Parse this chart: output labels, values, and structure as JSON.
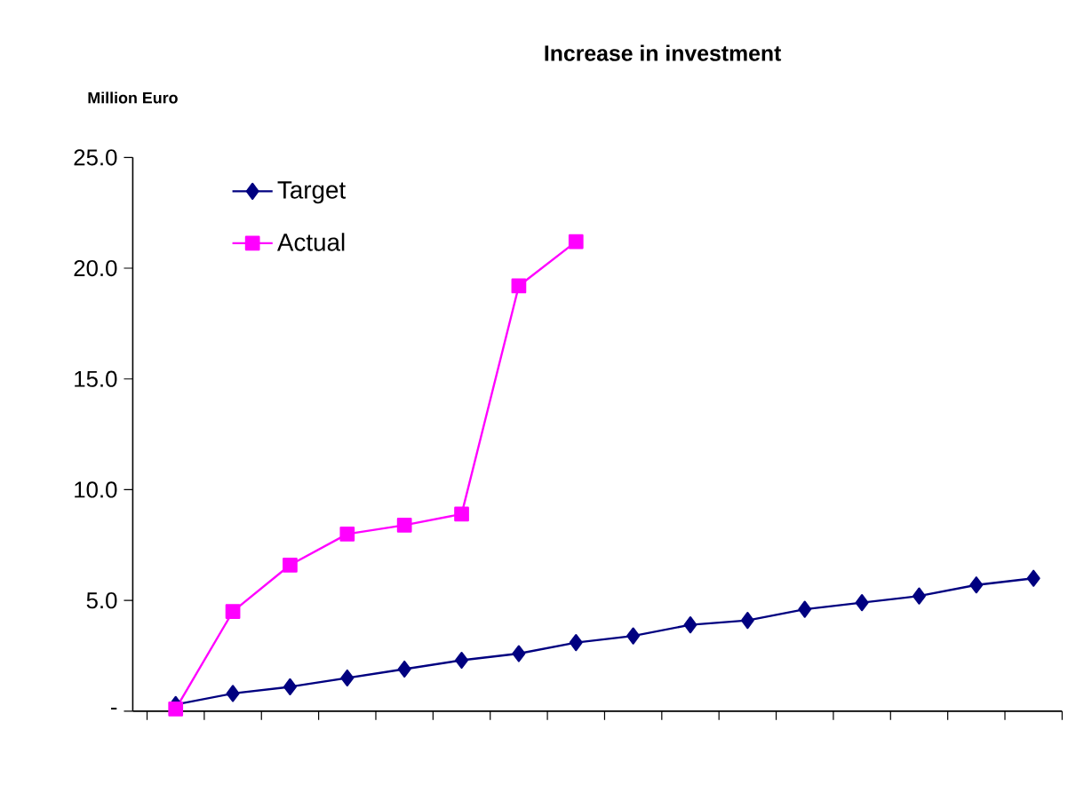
{
  "chart_data": {
    "type": "line",
    "title": "Increase in investment",
    "ylabel": "Million Euro",
    "categories": [
      null,
      null,
      null,
      null,
      null,
      null,
      null,
      null,
      null,
      null,
      null,
      null,
      null,
      null,
      null,
      null
    ],
    "series": [
      {
        "name": "Target",
        "color": "#000080",
        "marker": "diamond",
        "values": [
          0.3,
          0.8,
          1.1,
          1.5,
          1.9,
          2.3,
          2.6,
          3.1,
          3.4,
          3.9,
          4.1,
          4.6,
          4.9,
          5.2,
          5.7,
          6.0
        ]
      },
      {
        "name": "Actual",
        "color": "#ff00ff",
        "marker": "square",
        "values": [
          0.1,
          4.5,
          6.6,
          8.0,
          8.4,
          8.9,
          19.2,
          21.2,
          null,
          null,
          null,
          null,
          null,
          null,
          null,
          null
        ]
      }
    ],
    "ylim": [
      0,
      25
    ],
    "yticks": [
      {
        "value": 0,
        "label": "-"
      },
      {
        "value": 5,
        "label": "5.0"
      },
      {
        "value": 10,
        "label": "10.0"
      },
      {
        "value": 15,
        "label": "15.0"
      },
      {
        "value": 20,
        "label": "20.0"
      },
      {
        "value": 25,
        "label": "25.0"
      }
    ],
    "grid": false,
    "legend": "top left",
    "line_style": "solid"
  }
}
